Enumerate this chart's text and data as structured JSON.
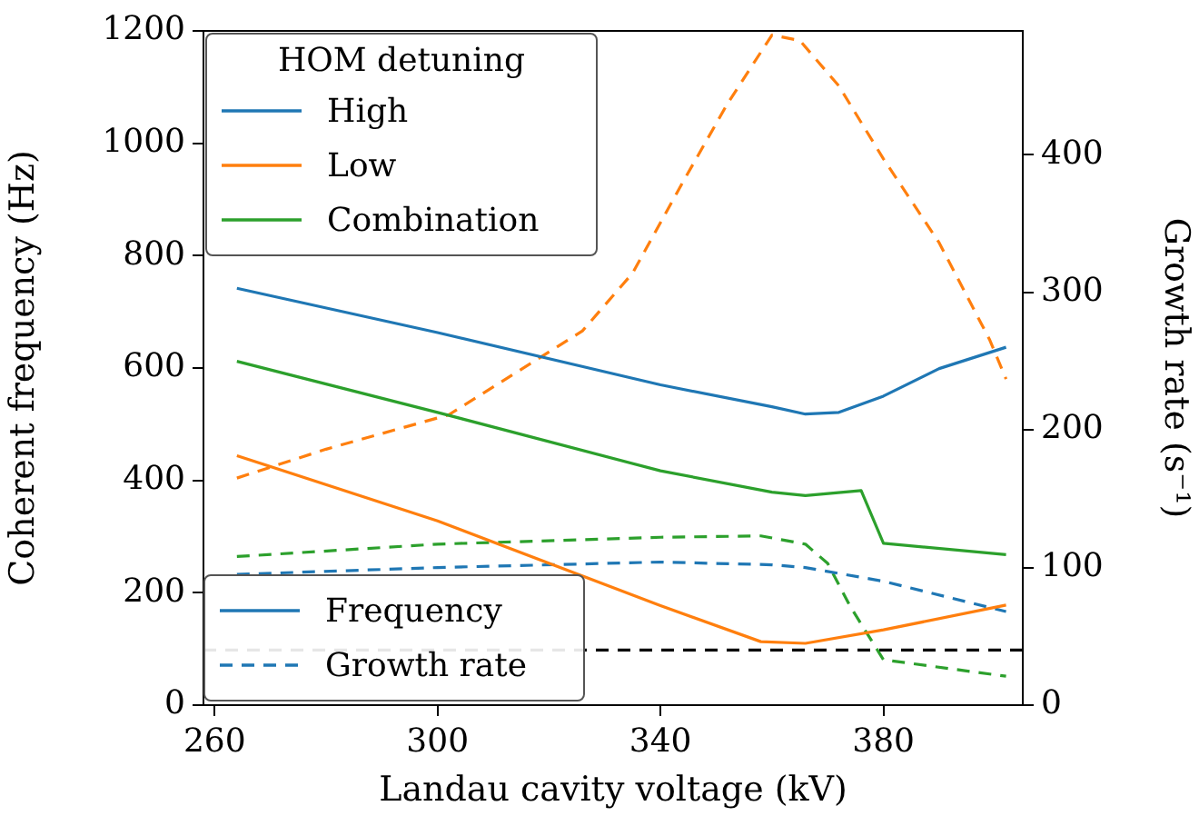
{
  "chart_data": {
    "type": "line",
    "xlabel": "Landau cavity voltage (kV)",
    "ylabel": "Coherent frequency (Hz)",
    "y2label": "Growth rate (s⁻¹)",
    "legend_title": "HOM detuning",
    "legend": "top left",
    "grid": false,
    "marker": "none",
    "xlim": [
      258,
      405
    ],
    "xticks": [
      260,
      300,
      340,
      380
    ],
    "ylim": [
      0,
      1200
    ],
    "yticks": [
      0,
      200,
      400,
      600,
      800,
      1000,
      1200
    ],
    "y2lim": [
      0,
      490
    ],
    "y2ticks": [
      0,
      100,
      200,
      300,
      400
    ],
    "series": [
      {
        "name": "High",
        "color": "#1f77b4",
        "line_style": "solid",
        "x": [
          264,
          300,
          340,
          360,
          366,
          372,
          380,
          390,
          402
        ],
        "values": [
          742,
          663,
          570,
          531,
          518,
          521,
          550,
          599,
          637
        ]
      },
      {
        "name": "Low",
        "color": "#ff7f0e",
        "line_style": "solid",
        "x": [
          264,
          300,
          340,
          358,
          366,
          380,
          402
        ],
        "values": [
          444,
          328,
          177,
          113,
          110,
          134,
          178
        ]
      },
      {
        "name": "Combination",
        "color": "#2ca02c",
        "line_style": "solid",
        "x": [
          264,
          300,
          340,
          360,
          366,
          376,
          380,
          402
        ],
        "values": [
          612,
          521,
          417,
          379,
          373,
          382,
          288,
          268
        ]
      },
      {
        "color": "#1f77b4",
        "line_style": "dashed",
        "axis": "y2",
        "x": [
          264,
          300,
          340,
          360,
          366,
          380,
          402
        ],
        "values": [
          95,
          100,
          104,
          102,
          100,
          90,
          68
        ]
      },
      {
        "color": "#ff7f0e",
        "line_style": "dashed",
        "axis": "y2",
        "x": [
          264,
          280,
          302,
          326,
          335,
          344,
          352,
          360,
          365,
          372,
          380,
          390,
          399,
          402
        ],
        "values": [
          165,
          186,
          211,
          272,
          314,
          380,
          437,
          487,
          483,
          450,
          397,
          336,
          266,
          237
        ]
      },
      {
        "color": "#2ca02c",
        "line_style": "dashed",
        "axis": "y2",
        "x": [
          264,
          300,
          340,
          358,
          366,
          370,
          374,
          378,
          380,
          402
        ],
        "values": [
          108,
          117,
          122,
          123,
          117,
          103,
          72,
          46,
          33,
          21
        ]
      }
    ],
    "ref_lines": [
      {
        "axis": "y2",
        "value": 40,
        "color": "#000000",
        "line_style": "dashed"
      }
    ],
    "annotations": [
      "Frequency",
      "Growth rate"
    ]
  }
}
